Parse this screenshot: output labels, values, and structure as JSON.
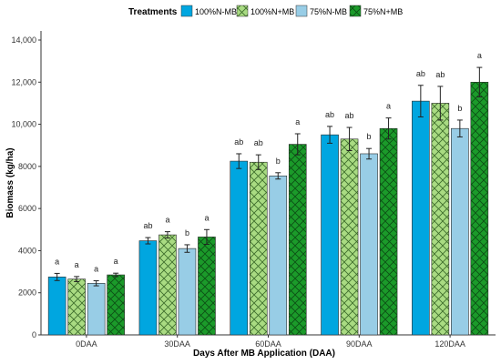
{
  "chart_data": {
    "type": "bar",
    "xlabel": "Days After MB Application (DAA)",
    "ylabel": "Biomass (kg/ha)",
    "ylim": [
      0,
      14000
    ],
    "yticks": [
      0,
      2000,
      4000,
      6000,
      8000,
      10000,
      12000,
      14000
    ],
    "ytick_labels": [
      "0",
      "2000",
      "4000",
      "6000",
      "8000",
      "10,000",
      "12,000",
      "14,000"
    ],
    "grid": false,
    "legend": {
      "title": "Treatments",
      "position": "top"
    },
    "categories": [
      "0DAA",
      "30DAA",
      "60DAA",
      "90DAA",
      "120DAA"
    ],
    "series": [
      {
        "name": "100%N-MB",
        "color": "#00a6e0",
        "pattern": "solid",
        "values": [
          2750,
          4470,
          8250,
          9500,
          11100
        ],
        "errors": [
          170,
          150,
          350,
          400,
          750
        ],
        "sig": [
          "a",
          "ab",
          "ab",
          "ab",
          "ab"
        ]
      },
      {
        "name": "100%N+MB",
        "color": "#a9db82",
        "pattern": "crosshatch",
        "values": [
          2650,
          4750,
          8200,
          9300,
          11000
        ],
        "errors": [
          120,
          150,
          350,
          550,
          800
        ],
        "sig": [
          "a",
          "a",
          "ab",
          "ab",
          "ab"
        ]
      },
      {
        "name": "75%N-MB",
        "color": "#98cde6",
        "pattern": "solid",
        "values": [
          2450,
          4100,
          7550,
          8600,
          9800
        ],
        "errors": [
          120,
          180,
          150,
          250,
          400
        ],
        "sig": [
          "a",
          "b",
          "b",
          "b",
          "b"
        ]
      },
      {
        "name": "75%N+MB",
        "color": "#1b9a2a",
        "pattern": "crosshatch",
        "values": [
          2850,
          4650,
          9050,
          9800,
          12000
        ],
        "errors": [
          80,
          350,
          500,
          500,
          700
        ],
        "sig": [
          "a",
          "a",
          "a",
          "a",
          "a"
        ]
      }
    ]
  }
}
